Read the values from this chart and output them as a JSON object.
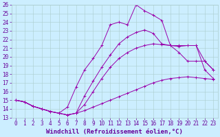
{
  "xlabel": "Windchill (Refroidissement éolien,°C)",
  "xlim": [
    -0.5,
    23.5
  ],
  "ylim": [
    13,
    26
  ],
  "xticks": [
    0,
    1,
    2,
    3,
    4,
    5,
    6,
    7,
    8,
    9,
    10,
    11,
    12,
    13,
    14,
    15,
    16,
    17,
    18,
    19,
    20,
    21,
    22,
    23
  ],
  "yticks": [
    13,
    14,
    15,
    16,
    17,
    18,
    19,
    20,
    21,
    22,
    23,
    24,
    25,
    26
  ],
  "line_color": "#9900aa",
  "bg_color": "#cceeff",
  "grid_color": "#aacccc",
  "lines": [
    {
      "x": [
        0,
        1,
        2,
        3,
        4,
        5,
        6,
        7,
        8,
        9,
        10,
        11,
        12,
        13,
        14,
        15,
        16,
        17,
        18,
        19,
        20,
        21,
        22,
        23
      ],
      "y": [
        15.0,
        14.8,
        14.3,
        14.0,
        13.7,
        13.5,
        13.3,
        13.5,
        13.8,
        14.2,
        14.6,
        15.0,
        15.4,
        15.8,
        16.2,
        16.6,
        17.0,
        17.3,
        17.5,
        17.6,
        17.7,
        17.6,
        17.5,
        17.4
      ]
    },
    {
      "x": [
        0,
        1,
        2,
        3,
        4,
        5,
        6,
        7,
        8,
        9,
        10,
        11,
        12,
        13,
        14,
        15,
        16,
        17,
        18,
        19,
        20,
        21,
        22,
        23
      ],
      "y": [
        15.0,
        14.8,
        14.3,
        14.0,
        13.7,
        13.5,
        13.3,
        13.5,
        14.5,
        16.0,
        17.5,
        18.8,
        19.8,
        20.5,
        21.0,
        21.3,
        21.5,
        21.4,
        21.3,
        21.2,
        21.3,
        21.3,
        19.5,
        18.5
      ]
    },
    {
      "x": [
        0,
        1,
        2,
        3,
        4,
        5,
        6,
        7,
        8,
        9,
        10,
        11,
        12,
        13,
        14,
        15,
        16,
        17,
        18,
        19,
        20,
        21,
        22,
        23
      ],
      "y": [
        15.0,
        14.8,
        14.3,
        14.0,
        13.7,
        13.5,
        14.2,
        16.5,
        18.5,
        19.8,
        21.3,
        23.7,
        24.0,
        23.7,
        26.0,
        25.3,
        24.8,
        24.2,
        21.3,
        21.3,
        21.3,
        21.3,
        18.5,
        17.5
      ]
    },
    {
      "x": [
        0,
        1,
        2,
        3,
        4,
        5,
        6,
        7,
        8,
        9,
        10,
        11,
        12,
        13,
        14,
        15,
        16,
        17,
        18,
        19,
        20,
        21,
        22,
        23
      ],
      "y": [
        15.0,
        14.8,
        14.3,
        14.0,
        13.7,
        13.5,
        13.3,
        13.5,
        15.5,
        17.2,
        18.8,
        20.2,
        21.5,
        22.3,
        22.8,
        23.1,
        22.7,
        21.5,
        21.3,
        20.5,
        19.5,
        19.5,
        19.5,
        18.5
      ]
    }
  ],
  "marker": "+",
  "font_color": "#660099",
  "tick_fontsize": 5.5,
  "label_fontsize": 6.5
}
